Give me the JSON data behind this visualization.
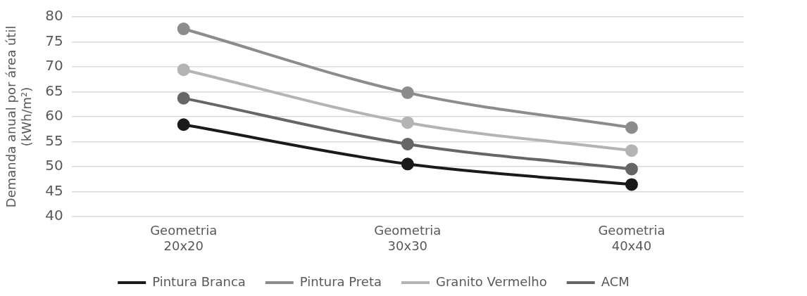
{
  "chart_data": {
    "type": "line",
    "ylabel": "Demanda anual por área útil (kWh/m²)",
    "categories": [
      "Geometria 20x20",
      "Geometria 30x30",
      "Geometria 40x40"
    ],
    "series": [
      {
        "name": "Pintura Branca",
        "color": "#1a1a1a",
        "values": [
          58.4,
          50.5,
          46.4
        ]
      },
      {
        "name": "Pintura Preta",
        "color": "#8c8c8c",
        "values": [
          77.6,
          64.8,
          57.8
        ]
      },
      {
        "name": "Granito Vermelho",
        "color": "#b4b4b4",
        "values": [
          69.4,
          58.8,
          53.2
        ]
      },
      {
        "name": "ACM",
        "color": "#666666",
        "values": [
          63.7,
          54.5,
          49.5
        ]
      }
    ],
    "ylim": [
      40,
      80
    ],
    "yticks": [
      40,
      45,
      50,
      55,
      60,
      65,
      70,
      75,
      80
    ],
    "grid": "y",
    "legend": "bottom",
    "marker": "circle",
    "line_style": "solid"
  }
}
